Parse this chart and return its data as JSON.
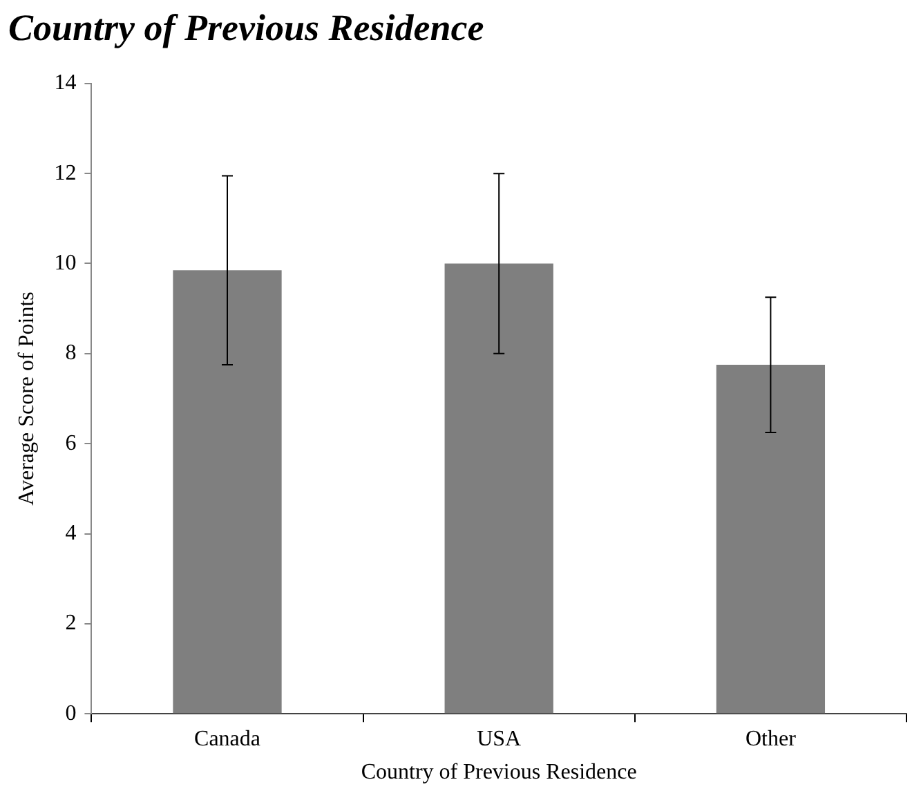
{
  "chart_data": {
    "type": "bar",
    "title": "Country of Previous Residence",
    "xlabel": "Country of Previous Residence",
    "ylabel": "Average Score of Points",
    "categories": [
      "Canada",
      "USA",
      "Other"
    ],
    "values": [
      9.85,
      10.0,
      7.75
    ],
    "errors": [
      2.1,
      2.0,
      1.5
    ],
    "color": "#7f7f7f",
    "ylim": [
      0,
      14
    ],
    "yticks": [
      0,
      2,
      4,
      6,
      8,
      10,
      12,
      14
    ],
    "grid": false,
    "legend": false
  }
}
